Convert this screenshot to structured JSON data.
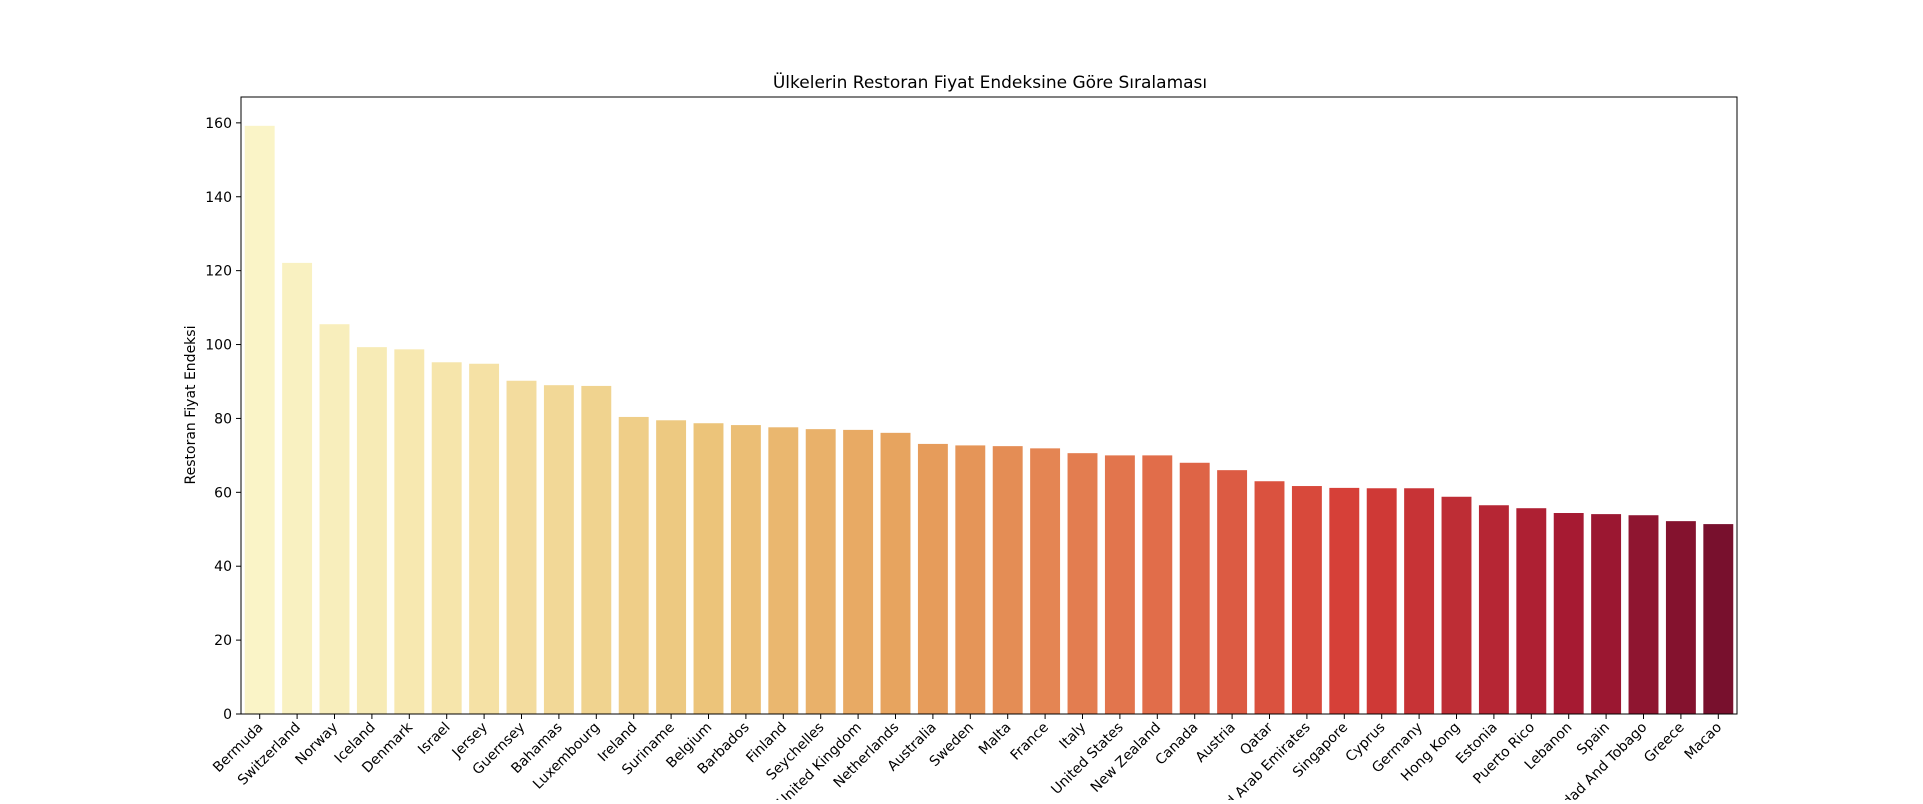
{
  "chart_data": {
    "type": "bar",
    "title": "Ülkelerin Restoran Fiyat Endeksine Göre Sıralaması",
    "xlabel": "",
    "ylabel": "Restoran Fiyat Endeksi",
    "ylim": [
      0,
      167
    ],
    "yticks": [
      0,
      20,
      40,
      60,
      80,
      100,
      120,
      140,
      160
    ],
    "grid": false,
    "legend": "none",
    "colormap": "YlOrRd",
    "categories": [
      "Bermuda",
      "Switzerland",
      "Norway",
      "Iceland",
      "Denmark",
      "Israel",
      "Jersey",
      "Guernsey",
      "Bahamas",
      "Luxembourg",
      "Ireland",
      "Suriname",
      "Belgium",
      "Barbados",
      "Finland",
      "Seychelles",
      "United Kingdom",
      "Netherlands",
      "Australia",
      "Sweden",
      "Malta",
      "France",
      "Italy",
      "United States",
      "New Zealand",
      "Canada",
      "Austria",
      "Qatar",
      "United Arab Emirates",
      "Singapore",
      "Cyprus",
      "Germany",
      "Hong Kong",
      "Estonia",
      "Puerto Rico",
      "Lebanon",
      "Spain",
      "Trinidad And Tobago",
      "Greece",
      "Macao"
    ],
    "values": [
      159.2,
      122.1,
      105.5,
      99.3,
      98.7,
      95.2,
      94.8,
      90.2,
      89.0,
      88.8,
      80.4,
      79.5,
      78.7,
      78.2,
      77.6,
      77.1,
      76.9,
      76.1,
      73.1,
      72.7,
      72.5,
      71.9,
      70.6,
      70.0,
      70.0,
      68.0,
      66.0,
      63.0,
      61.7,
      61.2,
      61.1,
      61.1,
      58.8,
      56.5,
      55.7,
      54.4,
      54.1,
      53.8,
      52.2,
      51.4
    ]
  }
}
